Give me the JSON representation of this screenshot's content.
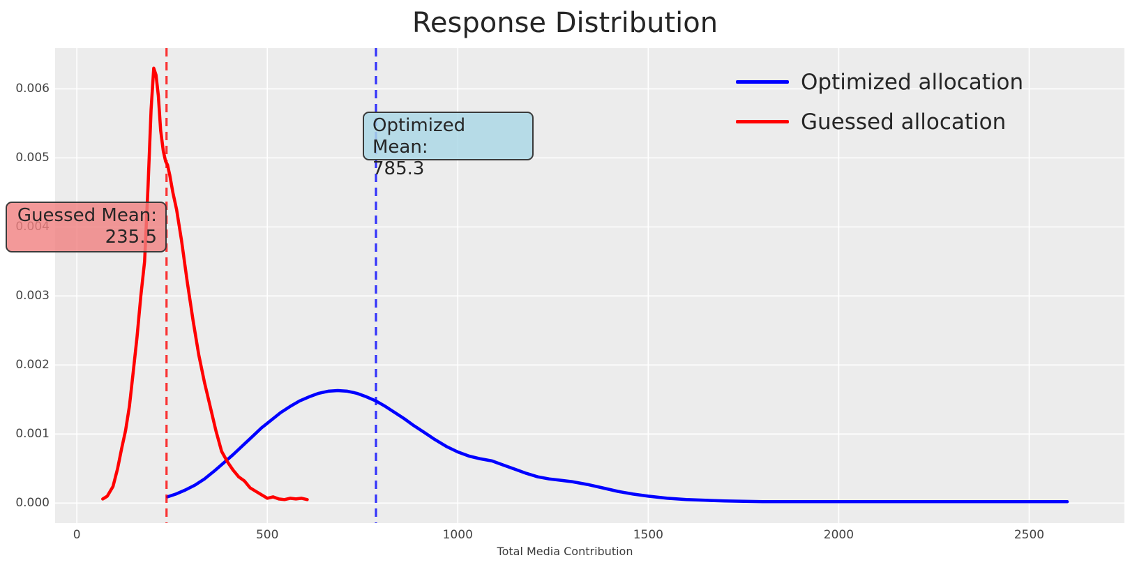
{
  "title": "Response Distribution",
  "axes": {
    "xlabel": "Total Media Contribution",
    "x_ticks": [
      0,
      500,
      1000,
      1500,
      2000,
      2500
    ],
    "y_ticks": [
      "0.000",
      "0.001",
      "0.002",
      "0.003",
      "0.004",
      "0.005",
      "0.006"
    ],
    "xlim": [
      -57,
      2750
    ],
    "ylim": [
      -0.00029,
      0.00659
    ]
  },
  "legend": {
    "items": [
      {
        "label": "Optimized allocation",
        "color": "#0000ff"
      },
      {
        "label": "Guessed allocation",
        "color": "#ff0000"
      }
    ]
  },
  "annotations": {
    "optimized": {
      "line1": "Optimized Mean:",
      "line2": "785.3",
      "fill": "#add8e6"
    },
    "guessed": {
      "line1": "Guessed Mean:",
      "line2": "235.5",
      "fill": "#f08080"
    }
  },
  "chart_data": {
    "type": "line",
    "title": "Response Distribution",
    "xlabel": "Total Media Contribution",
    "ylabel": "",
    "xlim": [
      -57,
      2750
    ],
    "ylim": [
      -0.00029,
      0.00659
    ],
    "grid": true,
    "legend_position": "upper right",
    "background": "#ececec",
    "series": [
      {
        "name": "Optimized allocation",
        "color": "#0000ff",
        "x": [
          238,
          260,
          285,
          310,
          335,
          360,
          385,
          410,
          435,
          460,
          485,
          510,
          535,
          560,
          585,
          610,
          635,
          660,
          685,
          710,
          735,
          760,
          785,
          810,
          835,
          860,
          885,
          910,
          940,
          970,
          1000,
          1030,
          1060,
          1090,
          1120,
          1150,
          1180,
          1210,
          1240,
          1270,
          1300,
          1340,
          1380,
          1420,
          1460,
          1500,
          1550,
          1600,
          1650,
          1700,
          1800,
          1900,
          2000,
          2100,
          2200,
          2300,
          2400,
          2500,
          2600
        ],
        "y": [
          9e-05,
          0.00013,
          0.00019,
          0.00026,
          0.00035,
          0.00046,
          0.00058,
          0.0007,
          0.00083,
          0.00096,
          0.00109,
          0.0012,
          0.00131,
          0.0014,
          0.00148,
          0.00154,
          0.00159,
          0.00162,
          0.00163,
          0.00162,
          0.00159,
          0.00154,
          0.00148,
          0.0014,
          0.00131,
          0.00122,
          0.00112,
          0.00103,
          0.00092,
          0.00082,
          0.00074,
          0.00068,
          0.00064,
          0.00061,
          0.00055,
          0.00049,
          0.00043,
          0.00038,
          0.00035,
          0.00033,
          0.00031,
          0.00027,
          0.00022,
          0.00017,
          0.00013,
          0.0001,
          7e-05,
          5e-05,
          4e-05,
          3e-05,
          2e-05,
          2e-05,
          2e-05,
          2e-05,
          2e-05,
          2e-05,
          2e-05,
          2e-05,
          2e-05
        ]
      },
      {
        "name": "Guessed allocation",
        "color": "#ff0000",
        "x": [
          68,
          80,
          95,
          107,
          118,
          128,
          138,
          148,
          158,
          168,
          178,
          187,
          195,
          202,
          208,
          214,
          220,
          227,
          233,
          238,
          244,
          252,
          262,
          275,
          290,
          305,
          320,
          335,
          350,
          365,
          380,
          395,
          410,
          425,
          440,
          455,
          470,
          485,
          500,
          515,
          530,
          545,
          560,
          575,
          590,
          605
        ],
        "y": [
          6e-05,
          0.0001,
          0.00024,
          0.0005,
          0.0008,
          0.00105,
          0.0014,
          0.0019,
          0.0024,
          0.003,
          0.0035,
          0.0046,
          0.0057,
          0.0063,
          0.0062,
          0.0059,
          0.0054,
          0.0051,
          0.00495,
          0.0049,
          0.00475,
          0.0045,
          0.00425,
          0.0038,
          0.0032,
          0.00265,
          0.00215,
          0.00175,
          0.0014,
          0.00105,
          0.00075,
          0.0006,
          0.00048,
          0.00038,
          0.00032,
          0.00022,
          0.00017,
          0.00012,
          7e-05,
          9e-05,
          6e-05,
          5e-05,
          7e-05,
          6e-05,
          7e-05,
          5e-05
        ]
      }
    ],
    "vlines": [
      {
        "x": 785.3,
        "color": "#0000ff",
        "style": "dashed",
        "label": "Optimized Mean: 785.3"
      },
      {
        "x": 235.5,
        "color": "#ff0000",
        "style": "dashed",
        "label": "Guessed Mean: 235.5"
      }
    ]
  }
}
